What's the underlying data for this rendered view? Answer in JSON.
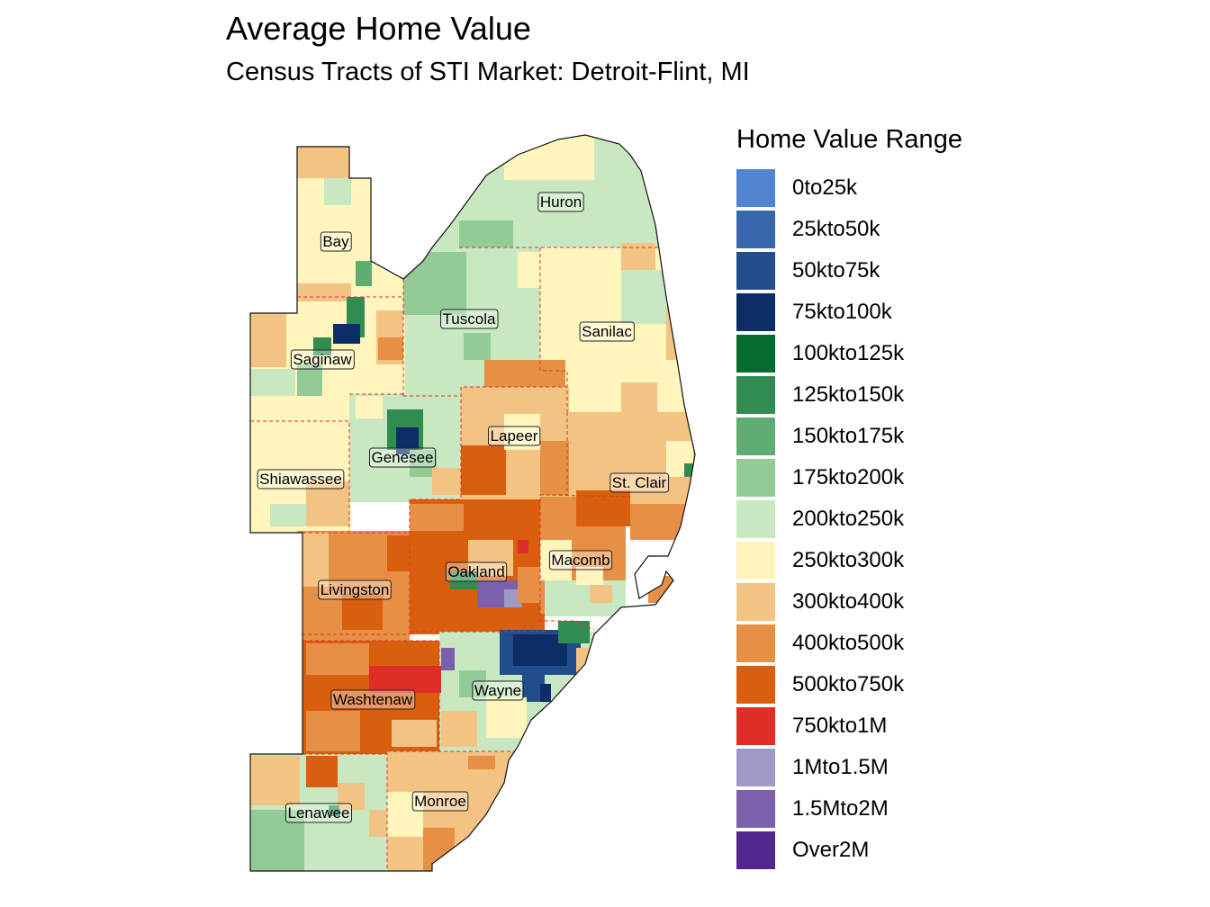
{
  "header": {
    "title": "Average Home Value",
    "subtitle": "Census Tracts of STI Market: Detroit-Flint, MI"
  },
  "legend": {
    "title": "Home Value Range",
    "items": [
      {
        "label": "0to25k",
        "color": "#5185cf"
      },
      {
        "label": "25kto50k",
        "color": "#3867ab"
      },
      {
        "label": "50kto75k",
        "color": "#224d8b"
      },
      {
        "label": "75kto100k",
        "color": "#0d2d66"
      },
      {
        "label": "100kto125k",
        "color": "#056b2e"
      },
      {
        "label": "125kto150k",
        "color": "#308c50"
      },
      {
        "label": "150kto175k",
        "color": "#5ead72"
      },
      {
        "label": "175kto200k",
        "color": "#93cb96"
      },
      {
        "label": "200kto250k",
        "color": "#c7e8c0"
      },
      {
        "label": "250kto300k",
        "color": "#fff5bd"
      },
      {
        "label": "300kto400k",
        "color": "#f3c383"
      },
      {
        "label": "400kto500k",
        "color": "#e79045"
      },
      {
        "label": "500kto750k",
        "color": "#d95f0e"
      },
      {
        "label": "750kto1M",
        "color": "#df2e28"
      },
      {
        "label": "1Mto1.5M",
        "color": "#9e99c7"
      },
      {
        "label": "1.5Mto2M",
        "color": "#7b60ad"
      },
      {
        "label": "Over2M",
        "color": "#54278f"
      }
    ]
  },
  "map": {
    "counties": [
      {
        "name": "Bay",
        "value_range": "250kto300k"
      },
      {
        "name": "Huron",
        "value_range": "200kto250k"
      },
      {
        "name": "Tuscola",
        "value_range": "200kto250k"
      },
      {
        "name": "Sanilac",
        "value_range": "250kto300k"
      },
      {
        "name": "Saginaw",
        "value_range": "250kto300k"
      },
      {
        "name": "Genesee",
        "value_range": "200kto250k"
      },
      {
        "name": "Lapeer",
        "value_range": "300kto400k"
      },
      {
        "name": "Shiawassee",
        "value_range": "250kto300k"
      },
      {
        "name": "St. Clair",
        "value_range": "300kto400k"
      },
      {
        "name": "Macomb",
        "value_range": "400kto500k"
      },
      {
        "name": "Oakland",
        "value_range": "500kto750k"
      },
      {
        "name": "Livingston",
        "value_range": "400kto500k"
      },
      {
        "name": "Washtenaw",
        "value_range": "500kto750k"
      },
      {
        "name": "Wayne",
        "value_range": "200kto250k"
      },
      {
        "name": "Lenawee",
        "value_range": "200kto250k"
      },
      {
        "name": "Monroe",
        "value_range": "300kto400k"
      }
    ]
  }
}
